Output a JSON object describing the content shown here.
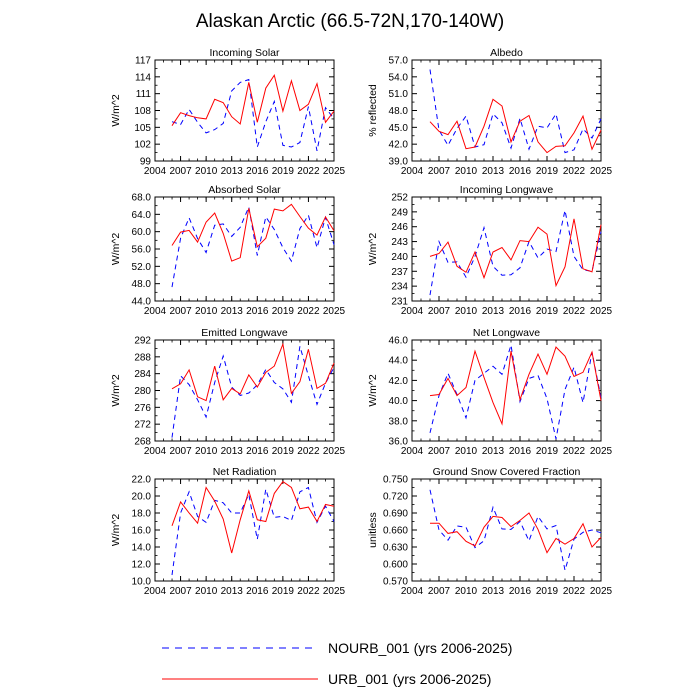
{
  "figure": {
    "title": "Alaskan Arctic (66.5-72N,170-140W)",
    "legend": [
      {
        "name": "NOURB_001 (yrs 2006-2025)",
        "color": "#0000ff",
        "dash": "dashed"
      },
      {
        "name": "URB_001 (yrs 2006-2025)",
        "color": "#ff0000",
        "dash": "solid"
      }
    ]
  },
  "chart_data": [
    {
      "type": "line",
      "title": "Incoming Solar",
      "ylabel": "W/m^2",
      "xlim": [
        2004,
        2025
      ],
      "ylim": [
        99,
        117
      ],
      "xticks": [
        "2004",
        "2007",
        "2010",
        "2013",
        "2016",
        "2019",
        "2022",
        "2025"
      ],
      "yticks": [
        "99",
        "102",
        "105",
        "108",
        "111",
        "114",
        "117"
      ],
      "x": [
        2006,
        2007,
        2008,
        2009,
        2010,
        2011,
        2012,
        2013,
        2014,
        2015,
        2016,
        2017,
        2018,
        2019,
        2020,
        2021,
        2022,
        2023,
        2024,
        2025
      ],
      "series": [
        {
          "name": "NOURB_001 (yrs 2006-2025)",
          "values": [
            106.0,
            105.5,
            108.2,
            105.9,
            104.0,
            104.6,
            105.7,
            111.5,
            113.0,
            113.5,
            101.5,
            106.0,
            109.6,
            101.8,
            101.5,
            102.3,
            108.7,
            100.8,
            108.5,
            106.5
          ]
        },
        {
          "name": "URB_001 (yrs 2006-2025)",
          "values": [
            105.3,
            107.6,
            107.1,
            106.7,
            106.5,
            110.0,
            109.4,
            106.9,
            105.6,
            113.0,
            105.9,
            112.0,
            114.3,
            107.9,
            113.3,
            108.0,
            109.1,
            112.8,
            105.9,
            107.9
          ]
        }
      ]
    },
    {
      "type": "line",
      "title": "Albedo",
      "ylabel": "% reflected",
      "xlim": [
        2004,
        2025
      ],
      "ylim": [
        39.0,
        57.0
      ],
      "xticks": [
        "2004",
        "2007",
        "2010",
        "2013",
        "2016",
        "2019",
        "2022",
        "2025"
      ],
      "yticks": [
        "39.0",
        "42.0",
        "45.0",
        "48.0",
        "51.0",
        "54.0",
        "57.0"
      ],
      "x": [
        2006,
        2007,
        2008,
        2009,
        2010,
        2011,
        2012,
        2013,
        2014,
        2015,
        2016,
        2017,
        2018,
        2019,
        2020,
        2021,
        2022,
        2023,
        2024,
        2025
      ],
      "series": [
        {
          "name": "NOURB_001 (yrs 2006-2025)",
          "values": [
            55.3,
            44.5,
            41.8,
            44.8,
            47.0,
            41.5,
            41.9,
            47.4,
            45.8,
            41.3,
            46.6,
            41.1,
            45.2,
            44.9,
            47.4,
            40.5,
            41.0,
            44.7,
            43.1,
            46.5
          ]
        },
        {
          "name": "URB_001 (yrs 2006-2025)",
          "values": [
            46.0,
            44.3,
            43.7,
            46.1,
            41.2,
            41.5,
            45.2,
            50.0,
            48.8,
            42.4,
            46.1,
            47.1,
            42.4,
            40.5,
            41.6,
            41.7,
            44.0,
            47.0,
            41.1,
            44.5
          ]
        }
      ]
    },
    {
      "type": "line",
      "title": "Absorbed Solar",
      "ylabel": "W/m^2",
      "xlim": [
        2004,
        2025
      ],
      "ylim": [
        44.0,
        68.0
      ],
      "xticks": [
        "2004",
        "2007",
        "2010",
        "2013",
        "2016",
        "2019",
        "2022",
        "2025"
      ],
      "yticks": [
        "44.0",
        "48.0",
        "52.0",
        "56.0",
        "60.0",
        "64.0",
        "68.0"
      ],
      "x": [
        2006,
        2007,
        2008,
        2009,
        2010,
        2011,
        2012,
        2013,
        2014,
        2015,
        2016,
        2017,
        2018,
        2019,
        2020,
        2021,
        2022,
        2023,
        2024,
        2025
      ],
      "series": [
        {
          "name": "NOURB_001 (yrs 2006-2025)",
          "values": [
            47.2,
            58.5,
            63.2,
            58.4,
            55.2,
            61.5,
            61.8,
            58.9,
            61.0,
            65.7,
            54.5,
            63.4,
            60.5,
            56.3,
            53.2,
            60.7,
            63.8,
            56.3,
            63.3,
            57.0
          ]
        },
        {
          "name": "URB_001 (yrs 2006-2025)",
          "values": [
            56.8,
            59.9,
            60.3,
            57.6,
            62.2,
            64.3,
            59.6,
            53.2,
            54.0,
            65.4,
            56.5,
            58.5,
            65.2,
            64.8,
            66.3,
            63.5,
            60.8,
            59.2,
            63.4,
            60.2
          ]
        }
      ]
    },
    {
      "type": "line",
      "title": "Incoming Longwave",
      "ylabel": "W/m^2",
      "xlim": [
        2004,
        2025
      ],
      "ylim": [
        231,
        252
      ],
      "xticks": [
        "2004",
        "2007",
        "2010",
        "2013",
        "2016",
        "2019",
        "2022",
        "2025"
      ],
      "yticks": [
        "231",
        "234",
        "237",
        "240",
        "243",
        "246",
        "249",
        "252"
      ],
      "x": [
        2006,
        2007,
        2008,
        2009,
        2010,
        2011,
        2012,
        2013,
        2014,
        2015,
        2016,
        2017,
        2018,
        2019,
        2020,
        2021,
        2022,
        2023,
        2024,
        2025
      ],
      "series": [
        {
          "name": "NOURB_001 (yrs 2006-2025)",
          "values": [
            232.2,
            243.0,
            238.8,
            238.9,
            235.8,
            240.0,
            245.8,
            238.0,
            236.2,
            236.3,
            237.7,
            243.0,
            239.7,
            241.5,
            241.0,
            249.3,
            240.0,
            237.3,
            237.0,
            245.0
          ]
        },
        {
          "name": "URB_001 (yrs 2006-2025)",
          "values": [
            240.0,
            240.6,
            242.9,
            238.0,
            236.8,
            240.9,
            235.7,
            240.9,
            241.8,
            239.3,
            243.2,
            243.0,
            245.9,
            244.5,
            234.1,
            237.9,
            247.6,
            237.5,
            236.9,
            246.4
          ]
        }
      ]
    },
    {
      "type": "line",
      "title": "Emitted Longwave",
      "ylabel": "W/m^2",
      "xlim": [
        2004,
        2025
      ],
      "ylim": [
        268,
        292
      ],
      "xticks": [
        "2004",
        "2007",
        "2010",
        "2013",
        "2016",
        "2019",
        "2022",
        "2025"
      ],
      "yticks": [
        "268",
        "272",
        "276",
        "280",
        "284",
        "288",
        "292"
      ],
      "x": [
        2006,
        2007,
        2008,
        2009,
        2010,
        2011,
        2012,
        2013,
        2014,
        2015,
        2016,
        2017,
        2018,
        2019,
        2020,
        2021,
        2022,
        2023,
        2024,
        2025
      ],
      "series": [
        {
          "name": "NOURB_001 (yrs 2006-2025)",
          "values": [
            268.8,
            283.5,
            281.4,
            277.8,
            273.7,
            281.9,
            288.2,
            280.8,
            278.8,
            279.4,
            281.3,
            285.0,
            281.9,
            280.4,
            277.2,
            290.5,
            283.5,
            276.7,
            281.7,
            285.5
          ]
        },
        {
          "name": "URB_001 (yrs 2006-2025)",
          "values": [
            280.4,
            281.6,
            284.9,
            278.5,
            277.6,
            285.8,
            277.8,
            280.5,
            279.2,
            283.7,
            280.8,
            284.3,
            285.8,
            291.0,
            279.3,
            282.1,
            289.8,
            280.5,
            281.7,
            286.5
          ]
        }
      ]
    },
    {
      "type": "line",
      "title": "Net Longwave",
      "ylabel": "W/m^2",
      "xlim": [
        2004,
        2025
      ],
      "ylim": [
        36.0,
        46.0
      ],
      "xticks": [
        "2004",
        "2007",
        "2010",
        "2013",
        "2016",
        "2019",
        "2022",
        "2025"
      ],
      "yticks": [
        "36.0",
        "38.0",
        "40.0",
        "42.0",
        "44.0",
        "46.0"
      ],
      "x": [
        2006,
        2007,
        2008,
        2009,
        2010,
        2011,
        2012,
        2013,
        2014,
        2015,
        2016,
        2017,
        2018,
        2019,
        2020,
        2021,
        2022,
        2023,
        2024,
        2025
      ],
      "series": [
        {
          "name": "NOURB_001 (yrs 2006-2025)",
          "values": [
            36.8,
            40.5,
            42.7,
            40.6,
            38.3,
            42.0,
            42.7,
            43.4,
            42.6,
            45.5,
            39.9,
            42.2,
            42.5,
            40.2,
            36.2,
            41.1,
            43.3,
            39.8,
            44.8,
            40.3
          ]
        },
        {
          "name": "URB_001 (yrs 2006-2025)",
          "values": [
            40.5,
            40.6,
            42.2,
            40.5,
            41.3,
            44.9,
            42.3,
            39.8,
            37.7,
            44.9,
            40.1,
            42.6,
            44.6,
            42.6,
            45.3,
            44.4,
            42.4,
            42.8,
            44.8,
            40.0
          ]
        }
      ]
    },
    {
      "type": "line",
      "title": "Net Radiation",
      "ylabel": "W/m^2",
      "xlim": [
        2004,
        2025
      ],
      "ylim": [
        10.0,
        22.0
      ],
      "xticks": [
        "2004",
        "2007",
        "2010",
        "2013",
        "2016",
        "2019",
        "2022",
        "2025"
      ],
      "yticks": [
        "10.0",
        "12.0",
        "14.0",
        "16.0",
        "18.0",
        "20.0",
        "22.0"
      ],
      "x": [
        2006,
        2007,
        2008,
        2009,
        2010,
        2011,
        2012,
        2013,
        2014,
        2015,
        2016,
        2017,
        2018,
        2019,
        2020,
        2021,
        2022,
        2023,
        2024,
        2025
      ],
      "series": [
        {
          "name": "NOURB_001 (yrs 2006-2025)",
          "values": [
            10.7,
            18.0,
            20.5,
            17.6,
            16.9,
            19.5,
            19.2,
            18.0,
            18.0,
            20.2,
            14.9,
            20.8,
            17.5,
            17.6,
            17.1,
            20.5,
            21.0,
            16.9,
            18.8,
            17.0
          ]
        },
        {
          "name": "URB_001 (yrs 2006-2025)",
          "values": [
            16.5,
            19.3,
            18.0,
            16.8,
            21.0,
            19.4,
            17.3,
            13.3,
            17.2,
            20.6,
            17.2,
            17.0,
            20.3,
            21.7,
            21.0,
            18.5,
            18.7,
            17.0,
            19.0,
            18.8
          ]
        }
      ]
    },
    {
      "type": "line",
      "title": "Ground Snow Covered Fraction",
      "ylabel": "unitless",
      "xlim": [
        2004,
        2025
      ],
      "ylim": [
        0.57,
        0.75
      ],
      "xticks": [
        "2004",
        "2007",
        "2010",
        "2013",
        "2016",
        "2019",
        "2022",
        "2025"
      ],
      "yticks": [
        "0.570",
        "0.600",
        "0.630",
        "0.660",
        "0.690",
        "0.720",
        "0.750"
      ],
      "x": [
        2006,
        2007,
        2008,
        2009,
        2010,
        2011,
        2012,
        2013,
        2014,
        2015,
        2016,
        2017,
        2018,
        2019,
        2020,
        2021,
        2022,
        2023,
        2024,
        2025
      ],
      "series": [
        {
          "name": "NOURB_001 (yrs 2006-2025)",
          "values": [
            0.731,
            0.66,
            0.642,
            0.667,
            0.665,
            0.629,
            0.641,
            0.7,
            0.662,
            0.661,
            0.675,
            0.641,
            0.684,
            0.662,
            0.668,
            0.589,
            0.644,
            0.656,
            0.66,
            0.655
          ]
        },
        {
          "name": "URB_001 (yrs 2006-2025)",
          "values": [
            0.672,
            0.672,
            0.654,
            0.657,
            0.64,
            0.632,
            0.665,
            0.684,
            0.682,
            0.666,
            0.677,
            0.69,
            0.661,
            0.62,
            0.645,
            0.635,
            0.645,
            0.671,
            0.63,
            0.647
          ]
        }
      ]
    }
  ]
}
